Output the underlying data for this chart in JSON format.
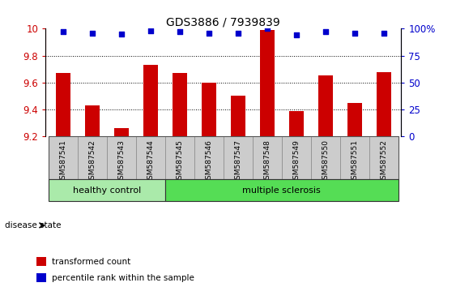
{
  "title": "GDS3886 / 7939839",
  "samples": [
    "GSM587541",
    "GSM587542",
    "GSM587543",
    "GSM587544",
    "GSM587545",
    "GSM587546",
    "GSM587547",
    "GSM587548",
    "GSM587549",
    "GSM587550",
    "GSM587551",
    "GSM587552"
  ],
  "bar_values": [
    9.67,
    9.43,
    9.26,
    9.73,
    9.67,
    9.6,
    9.5,
    9.99,
    9.39,
    9.65,
    9.45,
    9.68
  ],
  "percentile_values": [
    97,
    96,
    95,
    98,
    97,
    96,
    96,
    100,
    94,
    97,
    96,
    96
  ],
  "bar_color": "#cc0000",
  "dot_color": "#0000cc",
  "ylim_left": [
    9.2,
    10.0
  ],
  "ylim_right": [
    0,
    100
  ],
  "yticks_left": [
    9.2,
    9.4,
    9.6,
    9.8,
    10.0
  ],
  "ytick_labels_left": [
    "9.2",
    "9.4",
    "9.6",
    "9.8",
    "10"
  ],
  "yticks_right": [
    0,
    25,
    50,
    75,
    100
  ],
  "ytick_labels_right": [
    "0",
    "25",
    "50",
    "75",
    "100%"
  ],
  "n_healthy": 4,
  "n_total": 12,
  "healthy_color": "#aaeaaa",
  "ms_color": "#55dd55",
  "disease_label": "disease state",
  "legend_bar_label": "transformed count",
  "legend_dot_label": "percentile rank within the sample",
  "tick_area_color": "#cccccc",
  "bg_color": "#ffffff",
  "bar_width": 0.5
}
